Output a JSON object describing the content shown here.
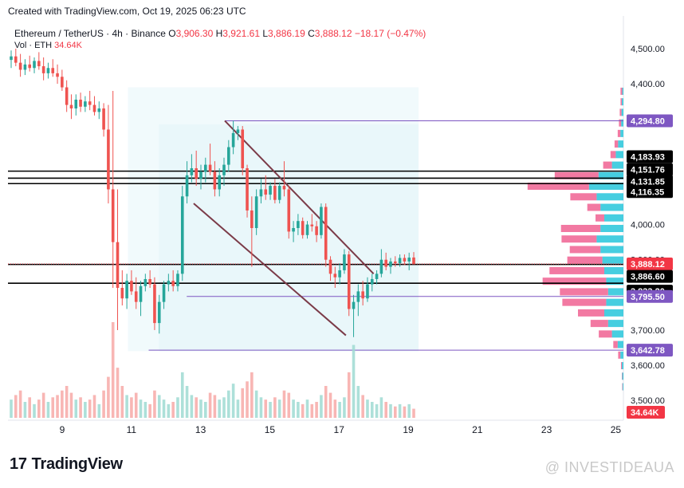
{
  "header": {
    "created_text": "Created with TradingView.com, Oct 19, 2025 06:23 UTC"
  },
  "legend": {
    "symbol": "Ethereum / TetherUS · 4h · Binance",
    "o_label": "O",
    "o_value": "3,906.30",
    "h_label": "H",
    "h_value": "3,921.61",
    "l_label": "L",
    "l_value": "3,886.19",
    "c_label": "C",
    "c_value": "3,888.12",
    "change": "−18.17 (−0.47%)",
    "vol_label": "Vol · ETH",
    "vol_value": "34.64K"
  },
  "footer": {
    "logo_text": "TradingView",
    "watermark": "@ INVESTIDEAUA"
  },
  "colors": {
    "up": "#26a69a",
    "down": "#ef5350",
    "purple": "#7e57c2",
    "black": "#000000",
    "channel": "#7b3b48"
  },
  "chart_data": {
    "type": "candlestick",
    "symbol": "ETHUSDT",
    "timeframe": "4h",
    "x_tick_labels": [
      "9",
      "11",
      "13",
      "15",
      "17",
      "19",
      "21",
      "23",
      "25"
    ],
    "y_tick_labels": [
      "4,500.00",
      "4,400.00",
      "4,000.00",
      "3,900.00",
      "3,700.00",
      "3,600.00",
      "3,500.00"
    ],
    "ylim": [
      3450,
      4540
    ],
    "price_tags": [
      {
        "label": "4,294.80",
        "value": 4294.8,
        "color": "#7e57c2"
      },
      {
        "label": "4,183.93",
        "value": 4183.93,
        "color": "#000000"
      },
      {
        "label": "4,151.76",
        "value": 4151.76,
        "color": "#000000"
      },
      {
        "label": "4,131.85",
        "value": 4131.85,
        "color": "#000000"
      },
      {
        "label": "4,116.35",
        "value": 4116.35,
        "color": "#000000"
      },
      {
        "label": "3,888.12",
        "value": 3888.12,
        "color": "#f23645"
      },
      {
        "label": "3,886.60",
        "value": 3886.6,
        "color": "#000000"
      },
      {
        "label": "3,833.20",
        "value": 3833.2,
        "color": "#000000"
      },
      {
        "label": "3,795.50",
        "value": 3795.5,
        "color": "#7e57c2"
      },
      {
        "label": "3,642.78",
        "value": 3642.78,
        "color": "#7e57c2"
      }
    ],
    "volume_tag": {
      "label": "34.64K",
      "color": "#f23645"
    },
    "horizontal_levels": [
      {
        "value": 4294.8,
        "color": "#7e57c2",
        "x_start_day": 13.7
      },
      {
        "value": 4151.76,
        "color": "#000000",
        "x_start_day": 8.0
      },
      {
        "value": 4131.85,
        "color": "#000000",
        "x_start_day": 8.0
      },
      {
        "value": 4116.35,
        "color": "#000000",
        "x_start_day": 8.0
      },
      {
        "value": 3886.6,
        "color": "#000000",
        "x_start_day": 8.0
      },
      {
        "value": 3833.2,
        "color": "#000000",
        "x_start_day": 8.0
      },
      {
        "value": 3795.5,
        "color": "#7e57c2",
        "x_start_day": 12.6
      },
      {
        "value": 3642.78,
        "color": "#7e57c2",
        "x_start_day": 11.5
      }
    ],
    "channel_lines": [
      {
        "x1_day": 13.7,
        "y1": 4295,
        "x2_day": 18.0,
        "y2": 3860
      },
      {
        "x1_day": 12.8,
        "y1": 4060,
        "x2_day": 17.2,
        "y2": 3685
      }
    ],
    "shaded_ranges": [
      {
        "x1_day": 10.9,
        "x2_day": 19.3,
        "y1": 4390,
        "y2": 3640
      },
      {
        "x1_day": 11.8,
        "x2_day": 19.3,
        "y1": 4285,
        "y2": 3640
      }
    ],
    "candles": [
      {
        "o": 4468,
        "h": 4495,
        "l": 4445,
        "c": 4478,
        "v": 8
      },
      {
        "o": 4478,
        "h": 4500,
        "l": 4450,
        "c": 4460,
        "v": 10
      },
      {
        "o": 4460,
        "h": 4485,
        "l": 4420,
        "c": 4440,
        "v": 12
      },
      {
        "o": 4440,
        "h": 4470,
        "l": 4425,
        "c": 4455,
        "v": 7
      },
      {
        "o": 4455,
        "h": 4480,
        "l": 4435,
        "c": 4445,
        "v": 9
      },
      {
        "o": 4445,
        "h": 4475,
        "l": 4430,
        "c": 4465,
        "v": 6
      },
      {
        "o": 4465,
        "h": 4490,
        "l": 4440,
        "c": 4450,
        "v": 8
      },
      {
        "o": 4450,
        "h": 4475,
        "l": 4410,
        "c": 4430,
        "v": 11
      },
      {
        "o": 4430,
        "h": 4460,
        "l": 4415,
        "c": 4445,
        "v": 7
      },
      {
        "o": 4445,
        "h": 4470,
        "l": 4420,
        "c": 4430,
        "v": 9
      },
      {
        "o": 4430,
        "h": 4455,
        "l": 4400,
        "c": 4420,
        "v": 10
      },
      {
        "o": 4420,
        "h": 4440,
        "l": 4380,
        "c": 4390,
        "v": 12
      },
      {
        "o": 4390,
        "h": 4410,
        "l": 4320,
        "c": 4340,
        "v": 14
      },
      {
        "o": 4340,
        "h": 4370,
        "l": 4300,
        "c": 4330,
        "v": 11
      },
      {
        "o": 4330,
        "h": 4370,
        "l": 4310,
        "c": 4355,
        "v": 8
      },
      {
        "o": 4355,
        "h": 4375,
        "l": 4320,
        "c": 4335,
        "v": 9
      },
      {
        "o": 4335,
        "h": 4365,
        "l": 4320,
        "c": 4350,
        "v": 7
      },
      {
        "o": 4350,
        "h": 4380,
        "l": 4325,
        "c": 4340,
        "v": 8
      },
      {
        "o": 4340,
        "h": 4365,
        "l": 4310,
        "c": 4320,
        "v": 10
      },
      {
        "o": 4320,
        "h": 4350,
        "l": 4300,
        "c": 4330,
        "v": 6
      },
      {
        "o": 4330,
        "h": 4345,
        "l": 4250,
        "c": 4270,
        "v": 12
      },
      {
        "o": 4270,
        "h": 4340,
        "l": 4060,
        "c": 4100,
        "v": 18
      },
      {
        "o": 4100,
        "h": 4380,
        "l": 3820,
        "c": 3950,
        "v": 42
      },
      {
        "o": 3950,
        "h": 4100,
        "l": 3700,
        "c": 3820,
        "v": 22
      },
      {
        "o": 3820,
        "h": 3870,
        "l": 3770,
        "c": 3790,
        "v": 14
      },
      {
        "o": 3790,
        "h": 3860,
        "l": 3760,
        "c": 3840,
        "v": 10
      },
      {
        "o": 3840,
        "h": 3870,
        "l": 3800,
        "c": 3810,
        "v": 9
      },
      {
        "o": 3810,
        "h": 3850,
        "l": 3760,
        "c": 3780,
        "v": 11
      },
      {
        "o": 3780,
        "h": 3840,
        "l": 3740,
        "c": 3825,
        "v": 8
      },
      {
        "o": 3825,
        "h": 3860,
        "l": 3810,
        "c": 3845,
        "v": 7
      },
      {
        "o": 3845,
        "h": 3870,
        "l": 3820,
        "c": 3830,
        "v": 6
      },
      {
        "o": 3830,
        "h": 3850,
        "l": 3700,
        "c": 3720,
        "v": 12
      },
      {
        "o": 3720,
        "h": 3800,
        "l": 3690,
        "c": 3780,
        "v": 10
      },
      {
        "o": 3780,
        "h": 3840,
        "l": 3760,
        "c": 3830,
        "v": 8
      },
      {
        "o": 3830,
        "h": 3860,
        "l": 3810,
        "c": 3840,
        "v": 6
      },
      {
        "o": 3840,
        "h": 3870,
        "l": 3810,
        "c": 3825,
        "v": 7
      },
      {
        "o": 3825,
        "h": 3870,
        "l": 3810,
        "c": 3860,
        "v": 9
      },
      {
        "o": 3860,
        "h": 4110,
        "l": 3840,
        "c": 4080,
        "v": 20
      },
      {
        "o": 4080,
        "h": 4180,
        "l": 4060,
        "c": 4140,
        "v": 14
      },
      {
        "o": 4140,
        "h": 4200,
        "l": 4120,
        "c": 4160,
        "v": 10
      },
      {
        "o": 4160,
        "h": 4210,
        "l": 4110,
        "c": 4130,
        "v": 9
      },
      {
        "o": 4130,
        "h": 4170,
        "l": 4100,
        "c": 4150,
        "v": 8
      },
      {
        "o": 4150,
        "h": 4190,
        "l": 4120,
        "c": 4170,
        "v": 7
      },
      {
        "o": 4170,
        "h": 4230,
        "l": 4140,
        "c": 4150,
        "v": 11
      },
      {
        "o": 4150,
        "h": 4180,
        "l": 4080,
        "c": 4100,
        "v": 10
      },
      {
        "o": 4100,
        "h": 4160,
        "l": 4080,
        "c": 4140,
        "v": 8
      },
      {
        "o": 4140,
        "h": 4190,
        "l": 4110,
        "c": 4170,
        "v": 9
      },
      {
        "o": 4170,
        "h": 4240,
        "l": 4150,
        "c": 4220,
        "v": 12
      },
      {
        "o": 4220,
        "h": 4295,
        "l": 4200,
        "c": 4260,
        "v": 15
      },
      {
        "o": 4260,
        "h": 4280,
        "l": 4240,
        "c": 4270,
        "v": 8
      },
      {
        "o": 4270,
        "h": 4280,
        "l": 4140,
        "c": 4160,
        "v": 13
      },
      {
        "o": 4160,
        "h": 4170,
        "l": 4020,
        "c": 4040,
        "v": 16
      },
      {
        "o": 4040,
        "h": 4080,
        "l": 3880,
        "c": 3990,
        "v": 20
      },
      {
        "o": 3990,
        "h": 4100,
        "l": 3970,
        "c": 4080,
        "v": 12
      },
      {
        "o": 4080,
        "h": 4130,
        "l": 4060,
        "c": 4100,
        "v": 9
      },
      {
        "o": 4100,
        "h": 4140,
        "l": 4070,
        "c": 4085,
        "v": 8
      },
      {
        "o": 4085,
        "h": 4120,
        "l": 4070,
        "c": 4110,
        "v": 7
      },
      {
        "o": 4110,
        "h": 4130,
        "l": 4060,
        "c": 4070,
        "v": 9
      },
      {
        "o": 4070,
        "h": 4120,
        "l": 4060,
        "c": 4110,
        "v": 8
      },
      {
        "o": 4110,
        "h": 4180,
        "l": 4080,
        "c": 4100,
        "v": 12
      },
      {
        "o": 4100,
        "h": 4110,
        "l": 3960,
        "c": 3980,
        "v": 11
      },
      {
        "o": 3980,
        "h": 4010,
        "l": 3950,
        "c": 3990,
        "v": 8
      },
      {
        "o": 3990,
        "h": 4030,
        "l": 3970,
        "c": 4010,
        "v": 7
      },
      {
        "o": 4010,
        "h": 4020,
        "l": 3960,
        "c": 3970,
        "v": 6
      },
      {
        "o": 3970,
        "h": 4010,
        "l": 3960,
        "c": 4000,
        "v": 8
      },
      {
        "o": 4000,
        "h": 4030,
        "l": 3980,
        "c": 3995,
        "v": 6
      },
      {
        "o": 3995,
        "h": 4010,
        "l": 3950,
        "c": 3970,
        "v": 7
      },
      {
        "o": 3970,
        "h": 4060,
        "l": 3960,
        "c": 4050,
        "v": 10
      },
      {
        "o": 4050,
        "h": 4060,
        "l": 3880,
        "c": 3900,
        "v": 14
      },
      {
        "o": 3900,
        "h": 3910,
        "l": 3840,
        "c": 3860,
        "v": 11
      },
      {
        "o": 3860,
        "h": 3880,
        "l": 3820,
        "c": 3850,
        "v": 8
      },
      {
        "o": 3850,
        "h": 3890,
        "l": 3830,
        "c": 3870,
        "v": 7
      },
      {
        "o": 3870,
        "h": 3930,
        "l": 3860,
        "c": 3915,
        "v": 9
      },
      {
        "o": 3915,
        "h": 3925,
        "l": 3740,
        "c": 3760,
        "v": 20
      },
      {
        "o": 3760,
        "h": 3800,
        "l": 3680,
        "c": 3780,
        "v": 32
      },
      {
        "o": 3780,
        "h": 3830,
        "l": 3740,
        "c": 3810,
        "v": 14
      },
      {
        "o": 3810,
        "h": 3840,
        "l": 3770,
        "c": 3790,
        "v": 10
      },
      {
        "o": 3790,
        "h": 3850,
        "l": 3780,
        "c": 3830,
        "v": 8
      },
      {
        "o": 3830,
        "h": 3860,
        "l": 3810,
        "c": 3845,
        "v": 7
      },
      {
        "o": 3845,
        "h": 3870,
        "l": 3830,
        "c": 3860,
        "v": 6
      },
      {
        "o": 3860,
        "h": 3930,
        "l": 3850,
        "c": 3900,
        "v": 9
      },
      {
        "o": 3900,
        "h": 3920,
        "l": 3870,
        "c": 3880,
        "v": 7
      },
      {
        "o": 3880,
        "h": 3905,
        "l": 3860,
        "c": 3895,
        "v": 6
      },
      {
        "o": 3895,
        "h": 3910,
        "l": 3880,
        "c": 3890,
        "v": 5
      },
      {
        "o": 3890,
        "h": 3915,
        "l": 3880,
        "c": 3905,
        "v": 6
      },
      {
        "o": 3905,
        "h": 3915,
        "l": 3885,
        "c": 3895,
        "v": 5
      },
      {
        "o": 3895,
        "h": 3920,
        "l": 3870,
        "c": 3906,
        "v": 6
      },
      {
        "o": 3906.3,
        "h": 3921.61,
        "l": 3886.19,
        "c": 3888.12,
        "v": 4
      }
    ],
    "volume_profile": [
      {
        "p": 4380,
        "up": 3,
        "dn": 4
      },
      {
        "p": 4350,
        "up": 4,
        "dn": 3
      },
      {
        "p": 4320,
        "up": 5,
        "dn": 4
      },
      {
        "p": 4290,
        "up": 6,
        "dn": 5
      },
      {
        "p": 4260,
        "up": 8,
        "dn": 6
      },
      {
        "p": 4230,
        "up": 14,
        "dn": 8
      },
      {
        "p": 4200,
        "up": 20,
        "dn": 12
      },
      {
        "p": 4170,
        "up": 30,
        "dn": 20
      },
      {
        "p": 4140,
        "up": 65,
        "dn": 100
      },
      {
        "p": 4110,
        "up": 90,
        "dn": 140
      },
      {
        "p": 4080,
        "up": 70,
        "dn": 60
      },
      {
        "p": 4050,
        "up": 60,
        "dn": 30
      },
      {
        "p": 4020,
        "up": 50,
        "dn": 20
      },
      {
        "p": 3990,
        "up": 60,
        "dn": 90
      },
      {
        "p": 3960,
        "up": 70,
        "dn": 80
      },
      {
        "p": 3930,
        "up": 60,
        "dn": 70
      },
      {
        "p": 3900,
        "up": 55,
        "dn": 80
      },
      {
        "p": 3870,
        "up": 50,
        "dn": 125
      },
      {
        "p": 3840,
        "up": 45,
        "dn": 145
      },
      {
        "p": 3810,
        "up": 40,
        "dn": 110
      },
      {
        "p": 3780,
        "up": 45,
        "dn": 100
      },
      {
        "p": 3750,
        "up": 50,
        "dn": 60
      },
      {
        "p": 3720,
        "up": 40,
        "dn": 40
      },
      {
        "p": 3690,
        "up": 30,
        "dn": 30
      },
      {
        "p": 3660,
        "up": 15,
        "dn": 10
      },
      {
        "p": 3630,
        "up": 8,
        "dn": 5
      },
      {
        "p": 3600,
        "up": 4,
        "dn": 2
      },
      {
        "p": 3570,
        "up": 3,
        "dn": 1
      },
      {
        "p": 3540,
        "up": 2,
        "dn": 1
      }
    ]
  }
}
